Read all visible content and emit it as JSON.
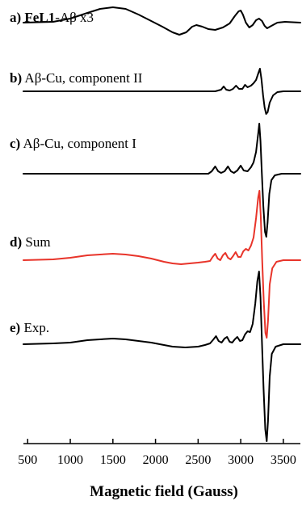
{
  "chart_data": {
    "type": "line",
    "xlabel": "Magnetic field (Gauss)",
    "xlim": [
      450,
      3700
    ],
    "x_ticks": [
      500,
      1000,
      1500,
      2000,
      2500,
      3000,
      3500
    ],
    "grid": false,
    "legend": "none",
    "series": [
      {
        "letter": "a)",
        "parts": [
          {
            "text": "FeL1",
            "bold": true
          },
          {
            "text": "-Aβ x3",
            "bold": false
          }
        ],
        "color": "#000000",
        "points": [
          [
            450,
            0
          ],
          [
            800,
            -1
          ],
          [
            1000,
            -5
          ],
          [
            1200,
            -12
          ],
          [
            1350,
            -17
          ],
          [
            1500,
            -19
          ],
          [
            1650,
            -17
          ],
          [
            1800,
            -10
          ],
          [
            1950,
            -2
          ],
          [
            2080,
            5
          ],
          [
            2200,
            12
          ],
          [
            2280,
            15
          ],
          [
            2360,
            12
          ],
          [
            2430,
            5
          ],
          [
            2480,
            3
          ],
          [
            2550,
            5
          ],
          [
            2620,
            8
          ],
          [
            2700,
            9
          ],
          [
            2790,
            6
          ],
          [
            2870,
            1
          ],
          [
            2930,
            -8
          ],
          [
            2975,
            -14
          ],
          [
            3000,
            -15
          ],
          [
            3025,
            -10
          ],
          [
            3060,
            0
          ],
          [
            3100,
            6
          ],
          [
            3140,
            3
          ],
          [
            3180,
            -3
          ],
          [
            3215,
            -5
          ],
          [
            3250,
            -2
          ],
          [
            3280,
            4
          ],
          [
            3310,
            7
          ],
          [
            3360,
            4
          ],
          [
            3430,
            0
          ],
          [
            3520,
            -1
          ],
          [
            3700,
            0
          ]
        ]
      },
      {
        "letter": "b)",
        "parts": [
          {
            "text": "Aβ-Cu, component II",
            "bold": false
          }
        ],
        "color": "#000000",
        "points": [
          [
            450,
            0
          ],
          [
            2700,
            0
          ],
          [
            2770,
            -2
          ],
          [
            2800,
            -6
          ],
          [
            2830,
            -2
          ],
          [
            2870,
            -1
          ],
          [
            2910,
            -3
          ],
          [
            2945,
            -7
          ],
          [
            2980,
            -3
          ],
          [
            3020,
            -3
          ],
          [
            3050,
            -8
          ],
          [
            3080,
            -5
          ],
          [
            3120,
            -7
          ],
          [
            3150,
            -10
          ],
          [
            3180,
            -14
          ],
          [
            3205,
            -22
          ],
          [
            3225,
            -28
          ],
          [
            3243,
            -15
          ],
          [
            3262,
            5
          ],
          [
            3280,
            20
          ],
          [
            3298,
            28
          ],
          [
            3315,
            26
          ],
          [
            3340,
            14
          ],
          [
            3380,
            5
          ],
          [
            3430,
            1
          ],
          [
            3500,
            0
          ],
          [
            3700,
            0
          ]
        ]
      },
      {
        "letter": "c)",
        "parts": [
          {
            "text": "Aβ-Cu, component I",
            "bold": false
          }
        ],
        "color": "#000000",
        "points": [
          [
            450,
            0
          ],
          [
            2620,
            0
          ],
          [
            2660,
            -3
          ],
          [
            2700,
            -9
          ],
          [
            2735,
            -3
          ],
          [
            2770,
            -1
          ],
          [
            2810,
            -3
          ],
          [
            2850,
            -9
          ],
          [
            2885,
            -3
          ],
          [
            2920,
            -1
          ],
          [
            2960,
            -4
          ],
          [
            3000,
            -10
          ],
          [
            3035,
            -4
          ],
          [
            3080,
            -3
          ],
          [
            3120,
            -8
          ],
          [
            3150,
            -14
          ],
          [
            3180,
            -27
          ],
          [
            3205,
            -50
          ],
          [
            3218,
            -62
          ],
          [
            3232,
            -40
          ],
          [
            3248,
            0
          ],
          [
            3265,
            40
          ],
          [
            3285,
            72
          ],
          [
            3300,
            78
          ],
          [
            3315,
            60
          ],
          [
            3335,
            25
          ],
          [
            3360,
            8
          ],
          [
            3400,
            2
          ],
          [
            3480,
            0
          ],
          [
            3700,
            0
          ]
        ]
      },
      {
        "letter": "d)",
        "parts": [
          {
            "text": "Sum",
            "bold": false
          }
        ],
        "color": "#e8342a",
        "points": [
          [
            450,
            0
          ],
          [
            800,
            -1
          ],
          [
            1000,
            -3
          ],
          [
            1200,
            -6
          ],
          [
            1350,
            -7
          ],
          [
            1500,
            -8
          ],
          [
            1650,
            -7
          ],
          [
            1800,
            -5
          ],
          [
            1950,
            -2
          ],
          [
            2100,
            2
          ],
          [
            2200,
            4
          ],
          [
            2300,
            5
          ],
          [
            2400,
            4
          ],
          [
            2500,
            3
          ],
          [
            2580,
            2
          ],
          [
            2640,
            1
          ],
          [
            2670,
            -4
          ],
          [
            2700,
            -8
          ],
          [
            2730,
            -2
          ],
          [
            2760,
            0
          ],
          [
            2790,
            -6
          ],
          [
            2820,
            -9
          ],
          [
            2850,
            -3
          ],
          [
            2880,
            -1
          ],
          [
            2910,
            -5
          ],
          [
            2940,
            -10
          ],
          [
            2970,
            -4
          ],
          [
            3000,
            -4
          ],
          [
            3030,
            -11
          ],
          [
            3060,
            -14
          ],
          [
            3090,
            -12
          ],
          [
            3120,
            -18
          ],
          [
            3150,
            -28
          ],
          [
            3180,
            -52
          ],
          [
            3205,
            -78
          ],
          [
            3220,
            -86
          ],
          [
            3235,
            -55
          ],
          [
            3252,
            0
          ],
          [
            3270,
            50
          ],
          [
            3290,
            90
          ],
          [
            3305,
            96
          ],
          [
            3320,
            75
          ],
          [
            3340,
            30
          ],
          [
            3370,
            10
          ],
          [
            3420,
            2
          ],
          [
            3500,
            0
          ],
          [
            3700,
            0
          ]
        ]
      },
      {
        "letter": "e)",
        "parts": [
          {
            "text": "Exp.",
            "bold": false
          }
        ],
        "color": "#000000",
        "points": [
          [
            450,
            0
          ],
          [
            800,
            -1
          ],
          [
            1000,
            -2
          ],
          [
            1200,
            -5
          ],
          [
            1350,
            -6
          ],
          [
            1500,
            -7
          ],
          [
            1650,
            -6
          ],
          [
            1800,
            -4
          ],
          [
            1950,
            -2
          ],
          [
            2100,
            1
          ],
          [
            2200,
            3
          ],
          [
            2350,
            4
          ],
          [
            2500,
            3
          ],
          [
            2580,
            1
          ],
          [
            2640,
            -1
          ],
          [
            2680,
            -6
          ],
          [
            2710,
            -10
          ],
          [
            2740,
            -4
          ],
          [
            2775,
            -2
          ],
          [
            2810,
            -7
          ],
          [
            2840,
            -9
          ],
          [
            2870,
            -3
          ],
          [
            2900,
            -2
          ],
          [
            2930,
            -6
          ],
          [
            2960,
            -9
          ],
          [
            2990,
            -4
          ],
          [
            3020,
            -5
          ],
          [
            3050,
            -12
          ],
          [
            3080,
            -16
          ],
          [
            3110,
            -15
          ],
          [
            3140,
            -25
          ],
          [
            3170,
            -50
          ],
          [
            3195,
            -78
          ],
          [
            3215,
            -90
          ],
          [
            3232,
            -58
          ],
          [
            3250,
            0
          ],
          [
            3268,
            55
          ],
          [
            3288,
            105
          ],
          [
            3305,
            120
          ],
          [
            3320,
            95
          ],
          [
            3340,
            40
          ],
          [
            3365,
            12
          ],
          [
            3410,
            3
          ],
          [
            3500,
            0
          ],
          [
            3700,
            0
          ]
        ]
      }
    ]
  }
}
